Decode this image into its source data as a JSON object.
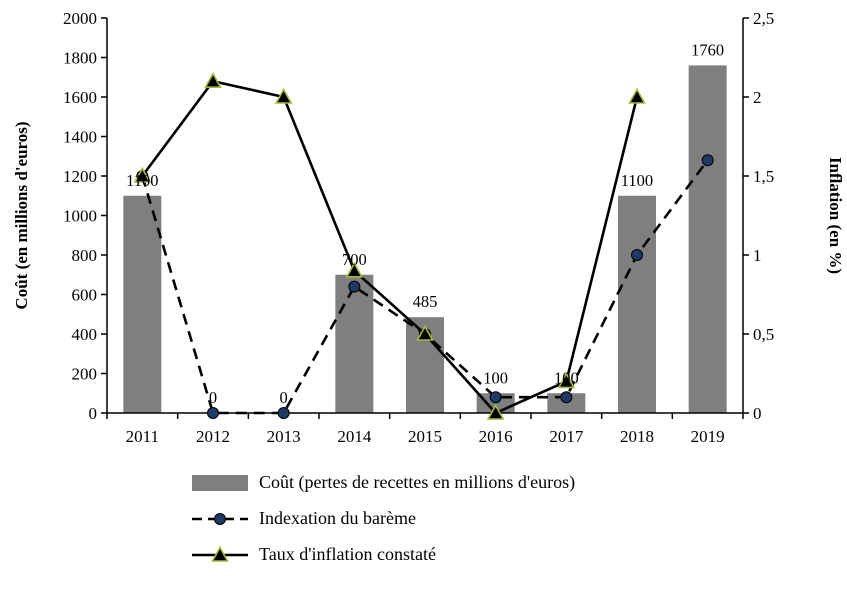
{
  "chart_data": {
    "type": "bar+line",
    "categories": [
      "2011",
      "2012",
      "2013",
      "2014",
      "2015",
      "2016",
      "2017",
      "2018",
      "2019"
    ],
    "bar_series": {
      "name": "Coût (pertes de recettes en millions d'euros)",
      "axis": "left",
      "color": "#7F7F7F",
      "values": [
        1100,
        0,
        0,
        700,
        485,
        100,
        100,
        1100,
        1760
      ],
      "labels": [
        "1100",
        "0",
        "0",
        "700",
        "485",
        "100",
        "100",
        "1100",
        "1760"
      ]
    },
    "line_series": [
      {
        "name": "Indexation du barème",
        "axis": "right",
        "style": "dashed",
        "marker": "circle",
        "color": "#000000",
        "marker_fill": "#1F3864",
        "marker_stroke": "#000000",
        "values": [
          1.5,
          0,
          0,
          0.8,
          0.5,
          0.1,
          0.1,
          1.0,
          1.6
        ]
      },
      {
        "name": "Taux d'inflation constaté",
        "axis": "right",
        "style": "solid",
        "marker": "triangle",
        "color": "#000000",
        "marker_fill": "#000000",
        "marker_stroke": "#A9B83C",
        "values": [
          1.5,
          2.1,
          2.0,
          0.9,
          0.5,
          0.0,
          0.2,
          2.0,
          null
        ]
      }
    ],
    "left_axis": {
      "title": "Coût (en millions d'euros)",
      "min": 0,
      "max": 2000,
      "step": 200,
      "tick_labels": [
        "0",
        "200",
        "400",
        "600",
        "800",
        "1000",
        "1200",
        "1400",
        "1600",
        "1800",
        "2000"
      ]
    },
    "right_axis": {
      "title": "Inflation (en %)",
      "min": 0,
      "max": 2.5,
      "step": 0.5,
      "tick_labels": [
        "0",
        "0,5",
        "1",
        "1,5",
        "2",
        "2,5"
      ]
    },
    "legend": [
      "Coût (pertes de recettes en millions d'euros)",
      "Indexation du barème",
      "Taux d'inflation constaté"
    ],
    "grid": false,
    "legend_position": "bottom-left"
  }
}
